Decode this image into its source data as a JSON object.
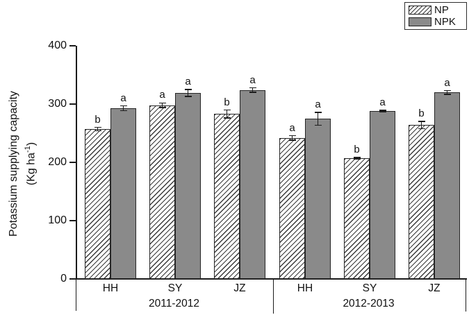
{
  "chart_data": {
    "type": "bar",
    "title": "",
    "ylabel": "Potassium supplying capacity (Kg ha⁻¹)",
    "ylabel_line1": "Potassium supplying capacity",
    "ylabel_units": {
      "prefix": "(Kg ha",
      "superscript": "-1",
      "suffix": ")"
    },
    "ylim": [
      0,
      400
    ],
    "yticks": [
      0,
      100,
      200,
      300,
      400
    ],
    "categories": [
      "HH",
      "SY",
      "JZ",
      "HH",
      "SY",
      "JZ"
    ],
    "year_labels": [
      "2011-2012",
      "2012-2013"
    ],
    "legend_position": "top-right",
    "grid": "off",
    "series": [
      {
        "name": "NP",
        "style": "hatched",
        "values": [
          257,
          298,
          283,
          242,
          207,
          264
        ],
        "errors": [
          4,
          5,
          8,
          5,
          2,
          7
        ],
        "sig_letters": [
          "b",
          "a",
          "b",
          "a",
          "b",
          "b"
        ]
      },
      {
        "name": "NPK",
        "style": "solid-gray",
        "values": [
          293,
          319,
          324,
          275,
          288,
          320
        ],
        "errors": [
          5,
          7,
          5,
          12,
          2,
          4
        ],
        "sig_letters": [
          "a",
          "a",
          "a",
          "a",
          "a",
          "a"
        ]
      }
    ],
    "colors": {
      "npk_fill": "#8a8a8a",
      "bar_outline": "#262626",
      "axis": "#1a1a1a",
      "background": "#ffffff"
    }
  }
}
